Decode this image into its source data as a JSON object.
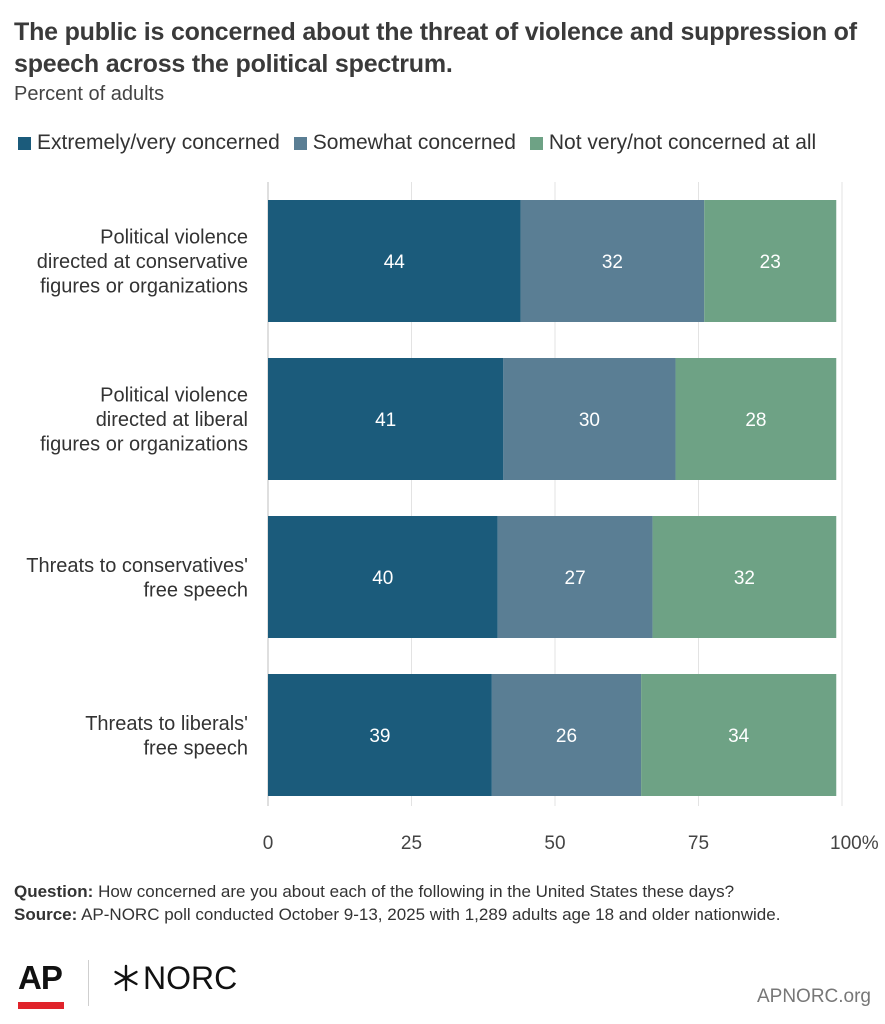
{
  "chart_data": {
    "type": "bar",
    "orientation": "horizontal",
    "stacked": true,
    "title": "The public is concerned about the threat of violence and suppression of speech across the political spectrum.",
    "subtitle": "Percent of adults",
    "categories": [
      [
        "Political violence",
        "directed at conservative",
        "figures or organizations"
      ],
      [
        "Political violence",
        "directed at liberal",
        "figures or organizations"
      ],
      [
        "Threats to conservatives'",
        "free speech"
      ],
      [
        "Threats to liberals'",
        "free speech"
      ]
    ],
    "series": [
      {
        "name": "Extremely/very concerned",
        "color": "#1b5b7b",
        "values": [
          44,
          41,
          40,
          39
        ]
      },
      {
        "name": "Somewhat concerned",
        "color": "#5a7e94",
        "values": [
          32,
          30,
          27,
          26
        ]
      },
      {
        "name": "Not very/not concerned at all",
        "color": "#6ea285",
        "values": [
          23,
          28,
          32,
          34
        ]
      }
    ],
    "xlim": [
      0,
      100
    ],
    "xticks": [
      0,
      25,
      50,
      75,
      100
    ],
    "xtick_labels": [
      "0",
      "25",
      "50",
      "75",
      "100%"
    ],
    "grid": true,
    "legend_position": "top"
  },
  "footer": {
    "question_label": "Question:",
    "question_text": "How concerned are you about each of the following in the United States these days?",
    "source_label": "Source:",
    "source_text": "AP-NORC poll conducted October 9-13, 2025 with 1,289 adults age 18 and older nationwide."
  },
  "logos": {
    "ap": "AP",
    "norc": "NORC"
  },
  "site": "APNORC.org"
}
